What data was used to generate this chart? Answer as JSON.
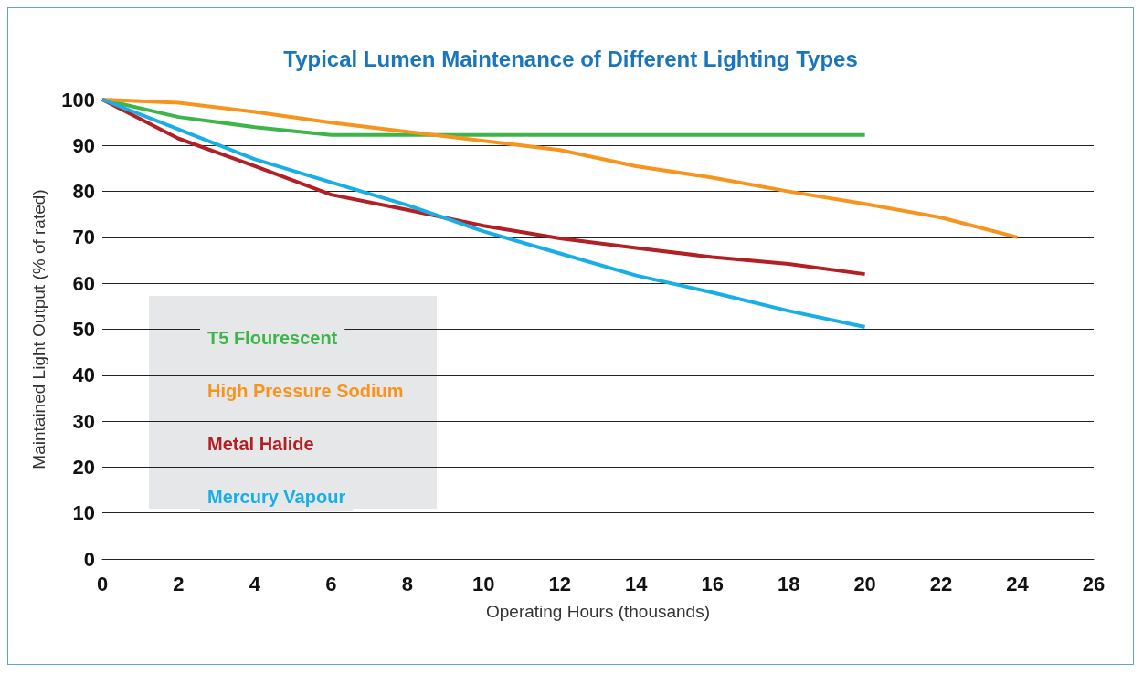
{
  "chart_data": {
    "type": "line",
    "title": "Typical Lumen Maintenance of Different Lighting Types",
    "xlabel": "Operating Hours (thousands)",
    "ylabel": "Maintained Light Output (% of rated)",
    "xlim": [
      0,
      26
    ],
    "xticks": [
      0,
      2,
      4,
      6,
      8,
      10,
      12,
      14,
      16,
      18,
      20,
      22,
      24,
      26
    ],
    "ylim": [
      0,
      100
    ],
    "yticks": [
      0,
      10,
      20,
      30,
      40,
      50,
      60,
      70,
      80,
      90,
      100
    ],
    "grid": "y",
    "legend": "bottom left",
    "marker": "none",
    "line_style": "solid",
    "series": [
      {
        "name": "T5 Flourescent",
        "color": "#3db54a",
        "x": [
          0,
          2,
          4,
          6,
          20
        ],
        "values": [
          100,
          96.2,
          94,
          92.3,
          92.3
        ]
      },
      {
        "name": "High Pressure Sodium",
        "color": "#f7941d",
        "x": [
          0,
          2,
          4,
          6,
          8,
          10,
          12,
          14,
          16,
          18,
          20,
          22,
          24
        ],
        "values": [
          100,
          99.3,
          97.3,
          95,
          93,
          91,
          89,
          85.5,
          83,
          80,
          77.3,
          74.3,
          70
        ]
      },
      {
        "name": "Metal Halide",
        "color": "#b21f24",
        "x": [
          0,
          2,
          4,
          6,
          8,
          10,
          12,
          14,
          16,
          18,
          20
        ],
        "values": [
          100,
          91.5,
          85.5,
          79.3,
          76,
          72.5,
          69.8,
          67.7,
          65.7,
          64.2,
          62
        ]
      },
      {
        "name": "Mercury Vapour",
        "color": "#18aee6",
        "x": [
          0,
          2,
          4,
          6,
          8,
          10,
          12,
          14,
          16,
          18,
          20
        ],
        "values": [
          100,
          93.5,
          87,
          82,
          77,
          71.3,
          66.5,
          61.7,
          58,
          54,
          50.5
        ]
      }
    ]
  }
}
